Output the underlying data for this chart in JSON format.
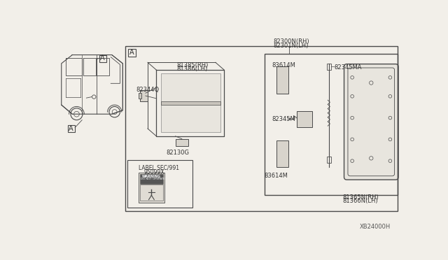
{
  "bg_color": "#f2efe9",
  "line_color": "#4a4a4a",
  "title_code": "XB24000H",
  "parts": {
    "82300N_RH": "82300N(RH)",
    "82301N_LH": "82301N(LH)",
    "81385_RH": "81385(RH)",
    "81386_LH": "81386(LH)",
    "82344Q": "82344Q",
    "82130G": "82130G",
    "83614M_top": "83614M",
    "82345MA": "82345MA",
    "82345M": "82345M",
    "83614M_bot": "83614M",
    "81365N_RH": "81365N(RH)",
    "81366N_LH": "81366N(LH)",
    "label_sec": "LABEL SEC/991",
    "label_num": "95099X",
    "section_A": "A"
  }
}
